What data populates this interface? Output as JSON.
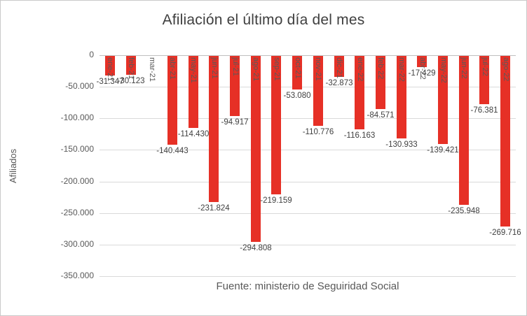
{
  "chart_data": {
    "type": "bar",
    "title": "Afiliación el último día del mes",
    "ylabel": "Afiliados",
    "source_note": "Fuente: ministerio de Seguiridad Social",
    "categories": [
      "ene-21",
      "feb-21",
      "mar-21",
      "abr-21",
      "may-21",
      "jun-21",
      "jul-21",
      "ago-21",
      "sep-21",
      "oct-21",
      "nov-21",
      "dic-21",
      "ene-22",
      "feb-22",
      "mar-22",
      "abr-22",
      "may-22",
      "jun-22",
      "jul-22",
      "ago-22"
    ],
    "values": [
      -31347,
      -30123,
      null,
      -140443,
      -114430,
      -231824,
      -94917,
      -294808,
      -219159,
      -53080,
      -110776,
      -32873,
      -116163,
      -84571,
      -130933,
      -17429,
      -139421,
      -235948,
      -76381,
      -269716
    ],
    "value_labels": [
      "-31.347",
      "-30.123",
      "",
      "-140.443",
      "-114.430",
      "-231.824",
      "-94.917",
      "-294.808",
      "-219.159",
      "-53.080",
      "-110.776",
      "-32.873",
      "-116.163",
      "-84.571",
      "-130.933",
      "-17.429",
      "-139.421",
      "-235.948",
      "-76.381",
      "-269.716"
    ],
    "y_tick_labels": [
      "0",
      "-50.000",
      "-100.000",
      "-150.000",
      "-200.000",
      "-250.000",
      "-300.000",
      "-350.000"
    ],
    "ylim": [
      -350000,
      0
    ],
    "y_step": 50000,
    "bar_color": "#e63026",
    "grid": true,
    "legend": "none"
  }
}
